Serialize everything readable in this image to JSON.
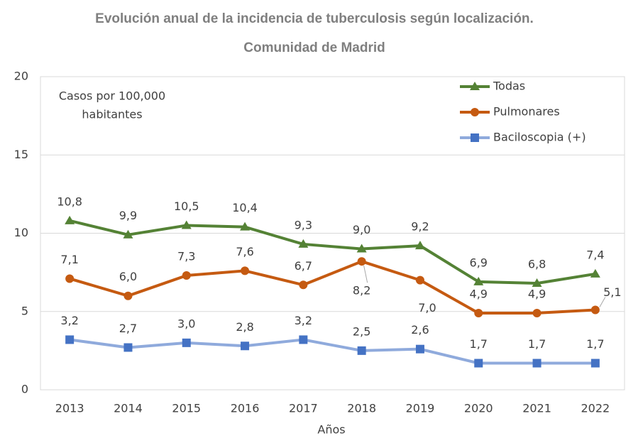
{
  "chart_data": {
    "type": "line",
    "title": "Evolución anual de la incidencia de tuberculosis según localización.",
    "subtitle": "Comunidad de Madrid",
    "annotation": [
      "Casos por 100,000",
      "habitantes"
    ],
    "x_label": "Años",
    "categories": [
      "2013",
      "2014",
      "2015",
      "2016",
      "2017",
      "2018",
      "2019",
      "2020",
      "2021",
      "2022"
    ],
    "series": [
      {
        "name": "Todas",
        "color": "#548235",
        "marker": "triangle",
        "marker_color": "#548235",
        "values": [
          10.8,
          9.9,
          10.5,
          10.4,
          9.3,
          9.0,
          9.2,
          6.9,
          6.8,
          7.4
        ],
        "value_labels": [
          "10,8",
          "9,9",
          "10,5",
          "10,4",
          "9,3",
          "9,0",
          "9,2",
          "6,9",
          "6,8",
          "7,4"
        ]
      },
      {
        "name": "Pulmonares",
        "color": "#c55a11",
        "marker": "circle",
        "marker_color": "#c55a11",
        "values": [
          7.1,
          6.0,
          7.3,
          7.6,
          6.7,
          8.2,
          7.0,
          4.9,
          4.9,
          5.1
        ],
        "value_labels": [
          "7,1",
          "6,0",
          "7,3",
          "7,6",
          "6,7",
          "8,2",
          "7,0",
          "4,9",
          "4,9",
          "5,1"
        ]
      },
      {
        "name": "Baciloscopia (+)",
        "color": "#8faadc",
        "marker": "square",
        "marker_color": "#4472c4",
        "values": [
          3.2,
          2.7,
          3.0,
          2.8,
          3.2,
          2.5,
          2.6,
          1.7,
          1.7,
          1.7
        ],
        "value_labels": [
          "3,2",
          "2,7",
          "3,0",
          "2,8",
          "3,2",
          "2,5",
          "2,6",
          "1,7",
          "1,7",
          "1,7"
        ]
      }
    ],
    "ylim": [
      0,
      20
    ],
    "yticks": [
      0,
      5,
      10,
      15,
      20
    ],
    "grid": true,
    "legend": "upper right"
  }
}
